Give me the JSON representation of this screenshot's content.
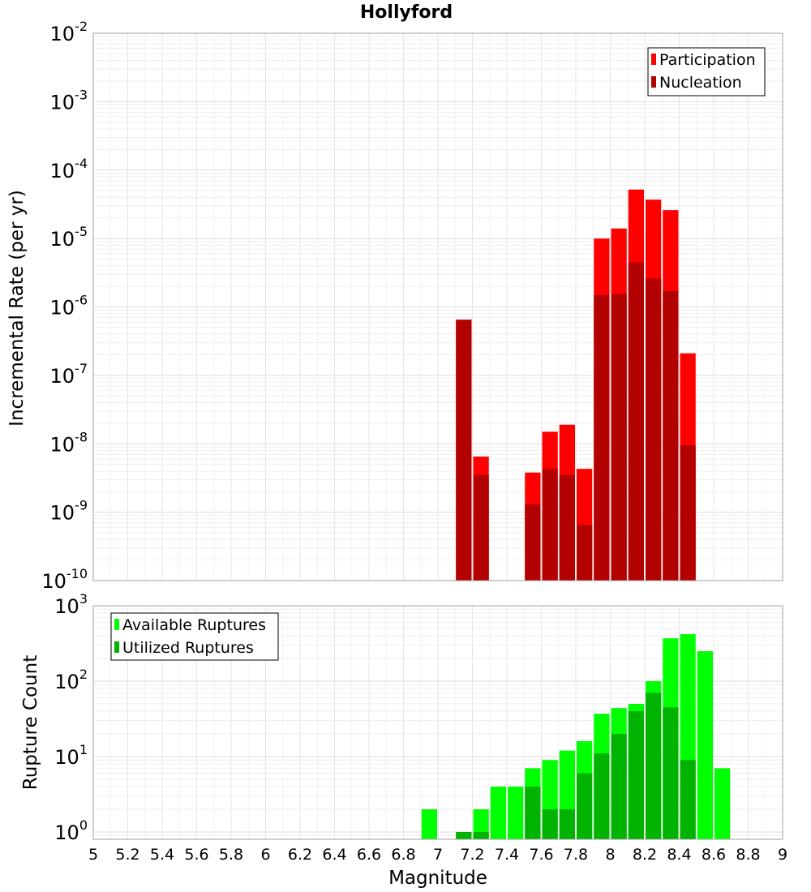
{
  "title": "Hollyford",
  "colors": {
    "participation": "#ff0000",
    "nucleation": "#b30000",
    "available": "#00ff00",
    "utilized": "#00b300",
    "grid": "#e8e8e8",
    "border": "#a0a0a0"
  },
  "chart_data": [
    {
      "type": "bar",
      "panel": "top",
      "ylabel": "Incremental Rate (per yr)",
      "xlabel": "Magnitude",
      "xlim": [
        5,
        9
      ],
      "ylim": [
        1e-10,
        0.01
      ],
      "yscale": "log",
      "grid": true,
      "legend_position": "top-right",
      "y_ticks": [
        {
          "base": "10",
          "exp": "-10",
          "value": 1e-10
        },
        {
          "base": "10",
          "exp": "-9",
          "value": 1e-09
        },
        {
          "base": "10",
          "exp": "-8",
          "value": 1e-08
        },
        {
          "base": "10",
          "exp": "-7",
          "value": 1e-07
        },
        {
          "base": "10",
          "exp": "-6",
          "value": 1e-06
        },
        {
          "base": "10",
          "exp": "-5",
          "value": 1e-05
        },
        {
          "base": "10",
          "exp": "-4",
          "value": 0.0001
        },
        {
          "base": "10",
          "exp": "-3",
          "value": 0.001
        },
        {
          "base": "10",
          "exp": "-2",
          "value": 0.01
        }
      ],
      "series": [
        {
          "name": "Participation",
          "x": [
            7.15,
            7.25,
            7.55,
            7.65,
            7.75,
            7.85,
            7.95,
            8.05,
            8.15,
            8.25,
            8.35,
            8.45
          ],
          "values": [
            6.5e-07,
            6.5e-09,
            3.8e-09,
            1.5e-08,
            1.9e-08,
            4.3e-09,
            1e-05,
            1.4e-05,
            5.2e-05,
            3.7e-05,
            2.6e-05,
            2.1e-07
          ]
        },
        {
          "name": "Nucleation",
          "x": [
            7.15,
            7.25,
            7.55,
            7.65,
            7.75,
            7.85,
            7.95,
            8.05,
            8.15,
            8.25,
            8.35,
            8.45
          ],
          "values": [
            6.5e-07,
            3.5e-09,
            1.3e-09,
            4.3e-09,
            3.5e-09,
            6.5e-10,
            1.5e-06,
            1.55e-06,
            4.5e-06,
            2.6e-06,
            1.7e-06,
            9.5e-09
          ]
        }
      ]
    },
    {
      "type": "bar",
      "panel": "bottom",
      "ylabel": "Rupture Count",
      "xlabel": "Magnitude",
      "xlim": [
        5,
        9
      ],
      "ylim": [
        0.8,
        1000
      ],
      "yscale": "log",
      "grid": true,
      "legend_position": "top-left",
      "y_ticks": [
        {
          "base": "10",
          "exp": "0",
          "value": 1
        },
        {
          "base": "10",
          "exp": "1",
          "value": 10
        },
        {
          "base": "10",
          "exp": "2",
          "value": 100
        },
        {
          "base": "10",
          "exp": "3",
          "value": 1000
        }
      ],
      "x_ticks": [
        "5",
        "5.2",
        "5.4",
        "5.6",
        "5.8",
        "6",
        "6.2",
        "6.4",
        "6.6",
        "6.8",
        "7",
        "7.2",
        "7.4",
        "7.6",
        "7.8",
        "8",
        "8.2",
        "8.4",
        "8.6",
        "8.8",
        "9"
      ],
      "series": [
        {
          "name": "Available Ruptures",
          "x": [
            6.95,
            7.15,
            7.25,
            7.35,
            7.45,
            7.55,
            7.65,
            7.75,
            7.85,
            7.95,
            8.05,
            8.15,
            8.25,
            8.35,
            8.45,
            8.55,
            8.65
          ],
          "values": [
            2,
            1,
            2,
            4,
            4,
            7,
            9,
            12,
            16,
            37,
            44,
            50,
            100,
            370,
            420,
            250,
            7
          ]
        },
        {
          "name": "Utilized Ruptures",
          "x": [
            7.15,
            7.25,
            7.55,
            7.65,
            7.75,
            7.85,
            7.95,
            8.05,
            8.15,
            8.25,
            8.35,
            8.45
          ],
          "values": [
            1,
            1,
            4,
            2,
            2,
            6,
            11,
            20,
            40,
            70,
            45,
            9
          ]
        }
      ]
    }
  ]
}
